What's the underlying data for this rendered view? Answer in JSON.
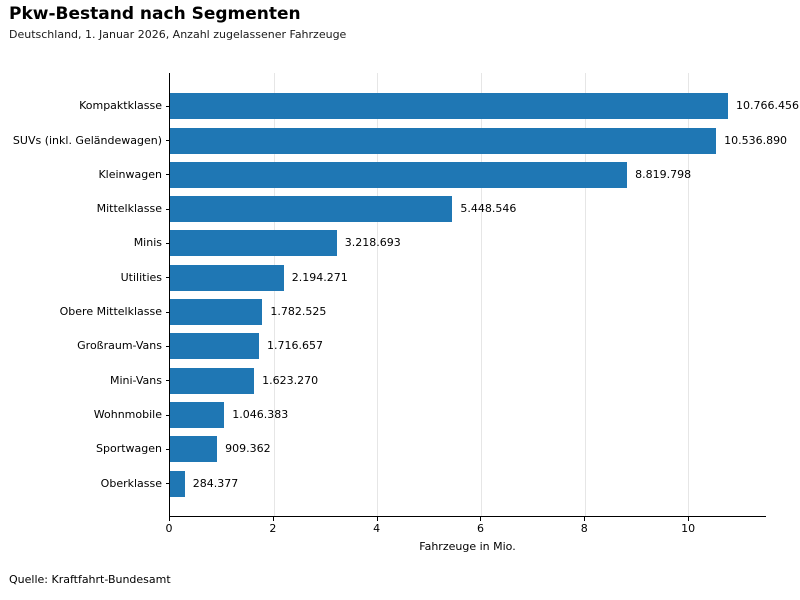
{
  "header": {
    "title": "Pkw-Bestand nach Segmenten",
    "subtitle": "Deutschland, 1. Januar 2026, Anzahl zugelassener Fahrzeuge"
  },
  "footer": {
    "source": "Quelle: Kraftfahrt-Bundesamt"
  },
  "chart_data": {
    "type": "bar",
    "orientation": "horizontal",
    "title": "Pkw-Bestand nach Segmenten",
    "subtitle": "Deutschland, 1. Januar 2026, Anzahl zugelassener Fahrzeuge",
    "categories": [
      "Kompaktklasse",
      "SUVs (inkl. Geländewagen)",
      "Kleinwagen",
      "Mittelklasse",
      "Minis",
      "Utilities",
      "Obere Mittelklasse",
      "Großraum-Vans",
      "Mini-Vans",
      "Wohnmobile",
      "Sportwagen",
      "Oberklasse"
    ],
    "values": [
      10766456,
      10536890,
      8819798,
      5448546,
      3218693,
      2194271,
      1782525,
      1716657,
      1623270,
      1046383,
      909362,
      284377
    ],
    "value_labels": [
      "10.766.456",
      "10.536.890",
      "8.819.798",
      "5.448.546",
      "3.218.693",
      "2.194.271",
      "1.782.525",
      "1.716.657",
      "1.623.270",
      "1.046.383",
      "909.362",
      "284.377"
    ],
    "xlabel": "Fahrzeuge in Mio.",
    "xlim": [
      0,
      11.5
    ],
    "xticks": [
      0,
      2,
      4,
      6,
      8,
      10
    ],
    "xtick_labels": [
      "0",
      "2",
      "4",
      "6",
      "8",
      "10"
    ],
    "grid": "vertical",
    "legend": "none",
    "bar_color": "#1f77b4",
    "grid_color": "#e6e6e6",
    "source": "Quelle: Kraftfahrt-Bundesamt"
  }
}
